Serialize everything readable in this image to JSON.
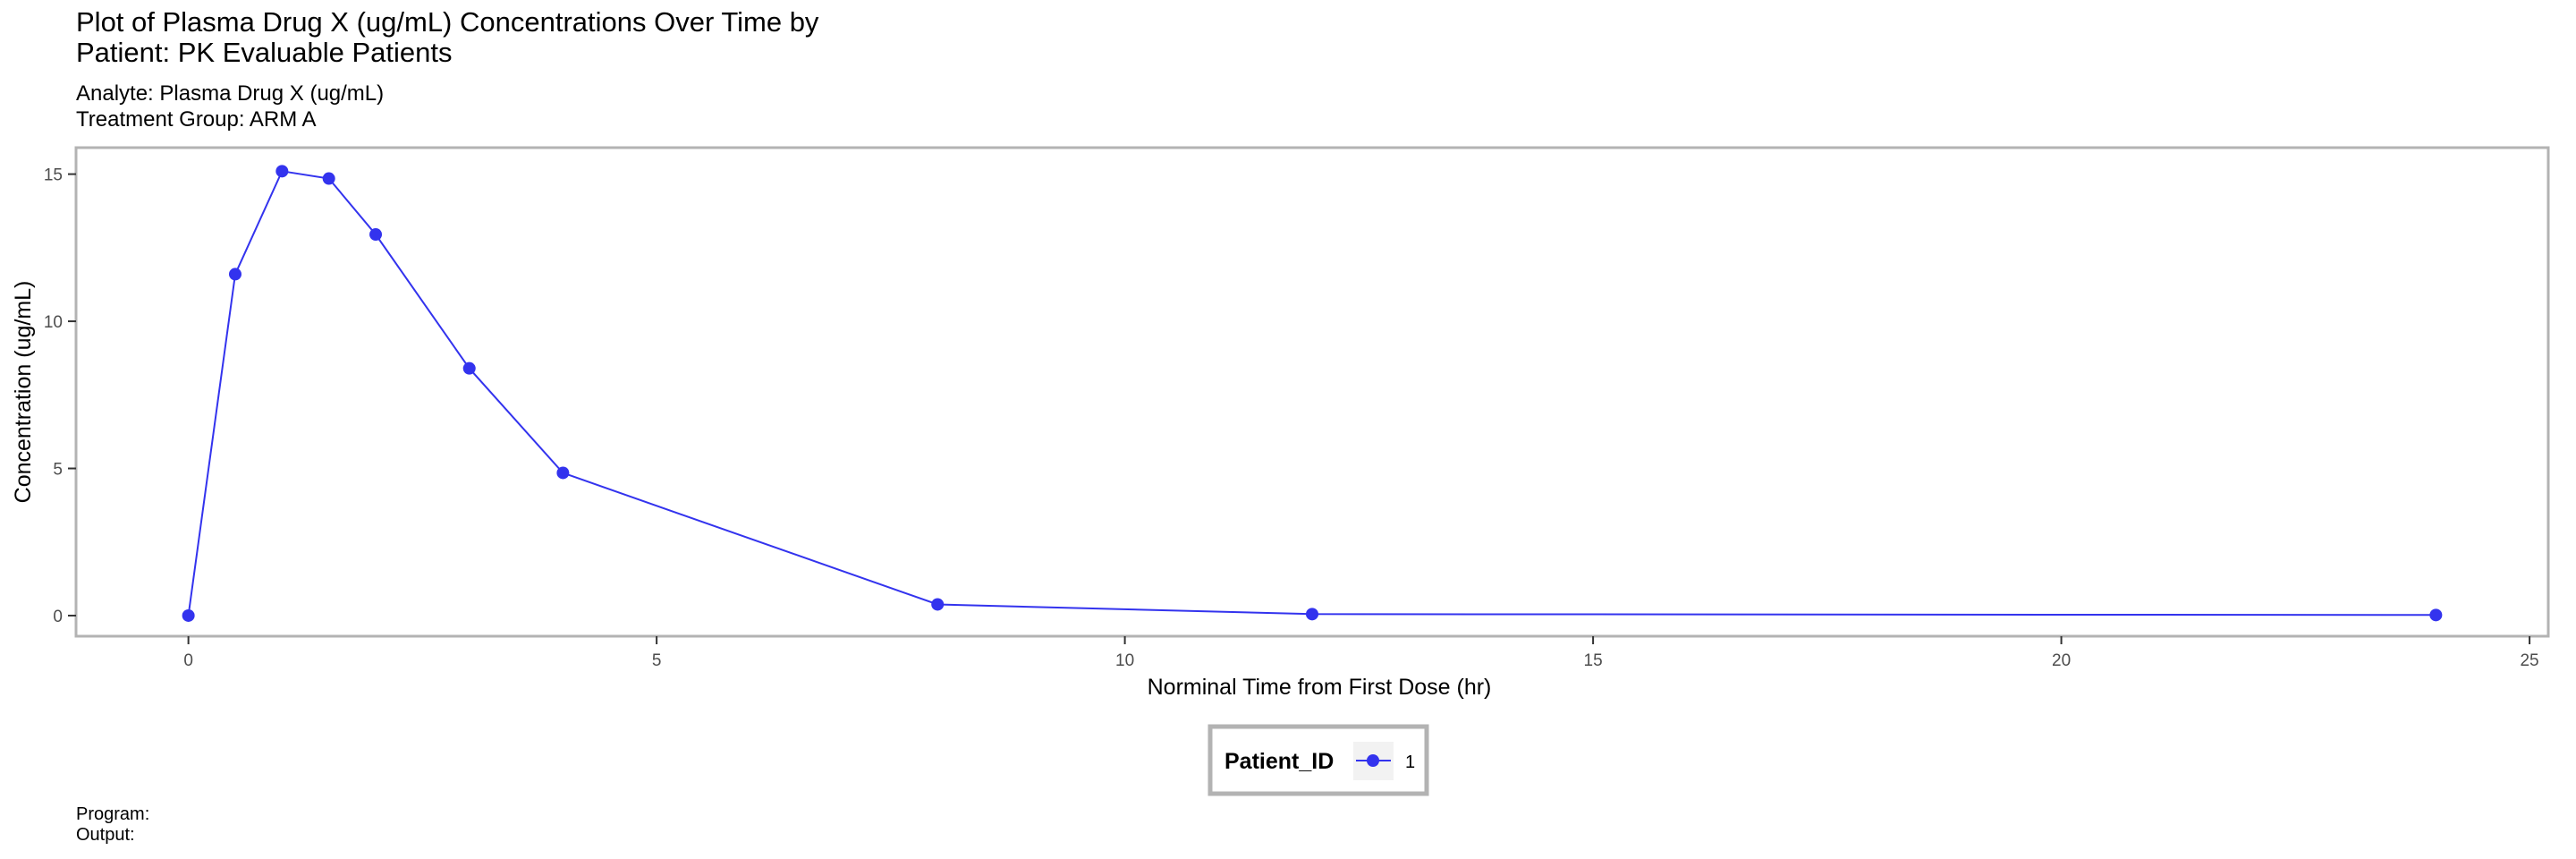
{
  "title": "Plot of Plasma Drug X (ug/mL) Concentrations Over Time by\nPatient: PK Evaluable Patients",
  "subtitle": "Analyte: Plasma Drug X (ug/mL)\nTreatment Group: ARM A",
  "caption": "Program:\nOutput:",
  "colors": {
    "series": "#3333ee",
    "panel_border": "#b3b3b3",
    "legend_key_bg": "#f2f2f2"
  },
  "chart_data": {
    "type": "line",
    "title": "Plot of Plasma Drug X (ug/mL) Concentrations Over Time by Patient: PK Evaluable Patients",
    "subtitle": "Analyte: Plasma Drug X (ug/mL) / Treatment Group: ARM A",
    "xlabel": "Norminal Time from First Dose (hr)",
    "ylabel": "Concentration (ug/mL)",
    "xlim": [
      -1.2,
      25.2
    ],
    "ylim": [
      -0.7,
      15.9
    ],
    "x_ticks": [
      0,
      5,
      10,
      15,
      20,
      25
    ],
    "y_ticks": [
      0,
      5,
      10,
      15
    ],
    "grid": false,
    "legend": {
      "title": "Patient_ID",
      "position": "bottom"
    },
    "series": [
      {
        "name": "1",
        "color": "#3333ee",
        "x": [
          0,
          0.5,
          1,
          1.5,
          2,
          3,
          4,
          8,
          12,
          24
        ],
        "y": [
          0,
          11.6,
          15.1,
          14.85,
          12.95,
          8.4,
          4.85,
          0.38,
          0.05,
          0.02
        ]
      }
    ]
  }
}
